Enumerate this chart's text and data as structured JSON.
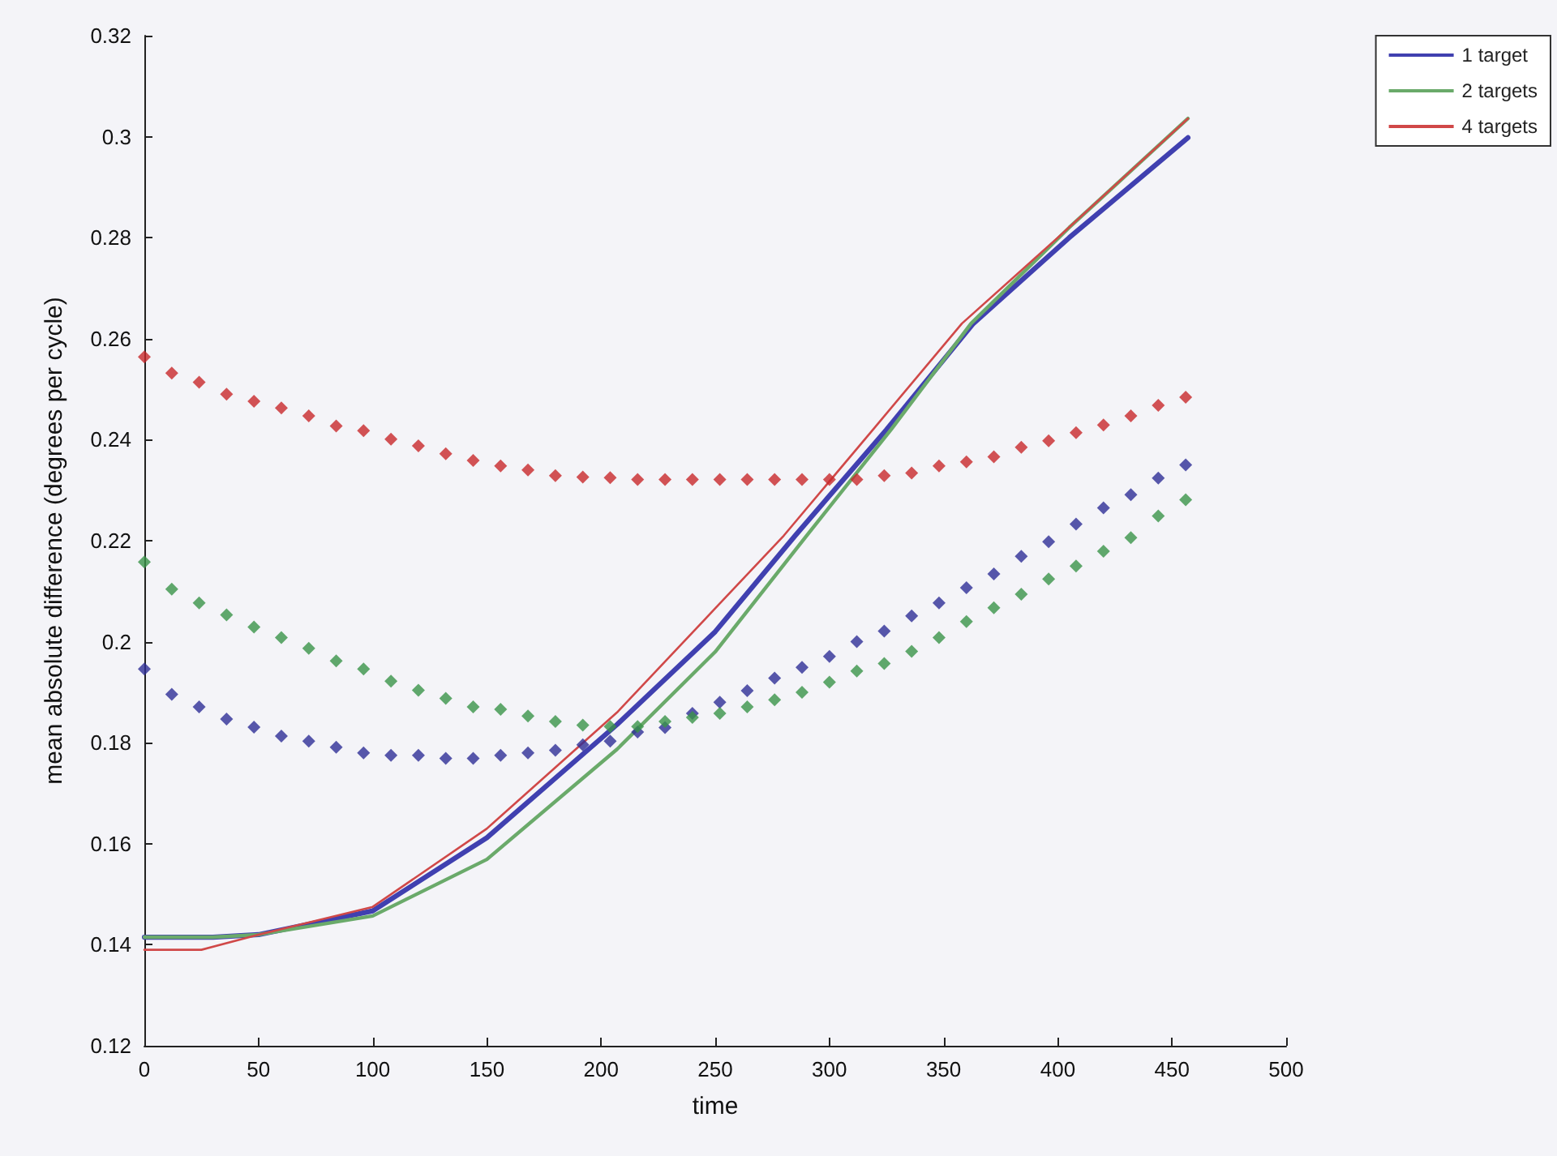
{
  "chart_data": {
    "type": "line",
    "xlabel": "time",
    "ylabel": "mean absolute difference (degrees per cycle)",
    "xlim": [
      0,
      500
    ],
    "xticks": [
      0,
      50,
      100,
      150,
      200,
      250,
      300,
      350,
      400,
      450,
      500
    ],
    "ylim": [
      0.12,
      0.32
    ],
    "yticks": [
      0.12,
      0.14,
      0.16,
      0.18,
      0.2,
      0.22,
      0.24,
      0.26,
      0.28,
      0.3,
      0.32
    ],
    "grid": false,
    "legend": "top right",
    "series": [
      {
        "type": "scatter",
        "marker": "diamond",
        "color": "#2e2e96",
        "x": [
          0,
          12,
          24,
          36,
          48,
          60,
          72,
          84,
          96,
          108,
          120,
          132,
          144,
          156,
          168,
          180,
          192,
          204,
          216,
          228,
          240,
          252,
          264,
          276,
          288,
          300,
          312,
          324,
          336,
          348,
          360,
          372,
          384,
          396,
          408,
          420,
          432,
          444,
          456
        ],
        "values": [
          0.1946,
          0.1896,
          0.1871,
          0.1847,
          0.1831,
          0.1813,
          0.1803,
          0.1791,
          0.178,
          0.1775,
          0.1775,
          0.1769,
          0.1769,
          0.1775,
          0.178,
          0.1785,
          0.1796,
          0.1803,
          0.1821,
          0.183,
          0.1858,
          0.188,
          0.1903,
          0.1928,
          0.1949,
          0.1971,
          0.2,
          0.2021,
          0.2051,
          0.2077,
          0.2107,
          0.2134,
          0.2169,
          0.2198,
          0.2233,
          0.2265,
          0.2291,
          0.2324,
          0.235
        ]
      },
      {
        "type": "scatter",
        "marker": "diamond",
        "color": "#3a9448",
        "x": [
          0,
          12,
          24,
          36,
          48,
          60,
          72,
          84,
          96,
          108,
          120,
          132,
          144,
          156,
          168,
          180,
          192,
          204,
          216,
          228,
          240,
          252,
          264,
          276,
          288,
          300,
          312,
          324,
          336,
          348,
          360,
          372,
          384,
          396,
          408,
          420,
          432,
          444,
          456
        ],
        "values": [
          0.2158,
          0.2104,
          0.2077,
          0.2053,
          0.2029,
          0.2008,
          0.1987,
          0.1962,
          0.1946,
          0.1922,
          0.1904,
          0.1888,
          0.1871,
          0.1866,
          0.1853,
          0.1842,
          0.1835,
          0.1832,
          0.1832,
          0.1842,
          0.185,
          0.1858,
          0.1871,
          0.1885,
          0.19,
          0.192,
          0.1942,
          0.1957,
          0.1981,
          0.2008,
          0.204,
          0.2067,
          0.2094,
          0.2124,
          0.215,
          0.2179,
          0.2206,
          0.2249,
          0.2281
        ]
      },
      {
        "type": "scatter",
        "marker": "diamond",
        "color": "#c8282a",
        "x": [
          0,
          12,
          24,
          36,
          48,
          60,
          72,
          84,
          96,
          108,
          120,
          132,
          144,
          156,
          168,
          180,
          192,
          204,
          216,
          228,
          240,
          252,
          264,
          276,
          288,
          300,
          312,
          324,
          336,
          348,
          360,
          372,
          384,
          396,
          408,
          420,
          432,
          444,
          456
        ],
        "values": [
          0.2564,
          0.2532,
          0.2514,
          0.249,
          0.2476,
          0.2463,
          0.2447,
          0.2427,
          0.2418,
          0.2401,
          0.2388,
          0.2372,
          0.2359,
          0.2348,
          0.234,
          0.2329,
          0.2326,
          0.2325,
          0.2321,
          0.2321,
          0.2321,
          0.2321,
          0.2321,
          0.2321,
          0.2321,
          0.2321,
          0.2321,
          0.2329,
          0.2334,
          0.2348,
          0.2356,
          0.2366,
          0.2385,
          0.2398,
          0.2414,
          0.2429,
          0.2447,
          0.2468,
          0.2484
        ]
      },
      {
        "type": "line",
        "name": "1 target",
        "color": "#4040b0",
        "x": [
          0,
          30,
          50,
          100,
          150,
          207,
          250,
          285,
          325,
          363,
          405,
          457
        ],
        "values": [
          0.1415,
          0.1415,
          0.142,
          0.1467,
          0.1612,
          0.1836,
          0.202,
          0.221,
          0.242,
          0.263,
          0.28,
          0.2998
        ]
      },
      {
        "type": "line",
        "name": "2 targets",
        "color": "#6aaa6a",
        "x": [
          0,
          30,
          50,
          100,
          150,
          207,
          250,
          290,
          327,
          362,
          405,
          457
        ],
        "values": [
          0.1415,
          0.1415,
          0.142,
          0.1457,
          0.1569,
          0.1787,
          0.198,
          0.221,
          0.242,
          0.263,
          0.282,
          0.3036
        ]
      },
      {
        "type": "line",
        "name": "4 targets",
        "color": "#d04848",
        "x": [
          0,
          25,
          50,
          100,
          150,
          207,
          250,
          280,
          320,
          358,
          400,
          457
        ],
        "values": [
          0.139,
          0.139,
          0.142,
          0.1475,
          0.163,
          0.186,
          0.2066,
          0.221,
          0.2425,
          0.263,
          0.28,
          0.3036
        ]
      }
    ]
  }
}
